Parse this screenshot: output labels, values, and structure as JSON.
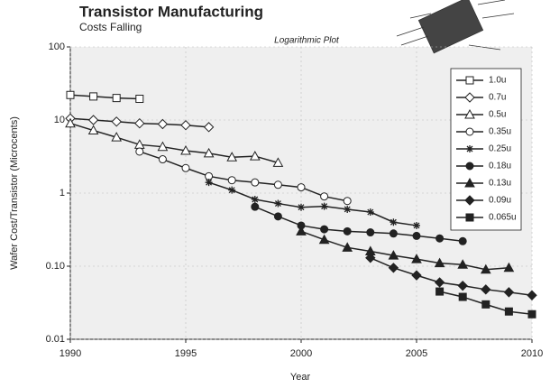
{
  "chart_data": {
    "type": "line",
    "title": "Transistor Manufacturing",
    "subtitle": "Costs Falling",
    "annotation": "Logarithmic Plot",
    "x_label": "Year",
    "y_label": "Wafer Cost/Transistor (Microcents)",
    "log_y": true,
    "grid": true,
    "legend": "upper right",
    "x": [
      1990,
      1991,
      1992,
      1993,
      1994,
      1995,
      1996,
      1997,
      1998,
      1999,
      2000,
      2001,
      2002,
      2003,
      2004,
      2005,
      2006,
      2007,
      2008,
      2009,
      2010
    ],
    "xlim": [
      1990,
      2010
    ],
    "xticks": [
      1990,
      1995,
      2000,
      2005,
      2010
    ],
    "ylim": [
      0.01,
      100
    ],
    "yticks": [
      0.01,
      {
        "value": 0.1,
        "label": "0.10"
      },
      1,
      10,
      100
    ],
    "series": [
      {
        "name": "1.0u",
        "color": "#222",
        "marker": "square-open",
        "values": [
          22,
          21,
          20,
          19.5,
          null,
          null,
          null,
          null,
          null,
          null,
          null,
          null,
          null,
          null,
          null,
          null,
          null,
          null,
          null,
          null,
          null
        ]
      },
      {
        "name": "0.7u",
        "color": "#222",
        "marker": "diamond-open",
        "values": [
          10.5,
          10,
          9.5,
          9,
          8.8,
          8.5,
          8,
          null,
          null,
          null,
          null,
          null,
          null,
          null,
          null,
          null,
          null,
          null,
          null,
          null,
          null
        ]
      },
      {
        "name": "0.5u",
        "color": "#222",
        "marker": "triangle-open",
        "values": [
          9,
          7.2,
          5.8,
          4.6,
          4.3,
          3.8,
          3.5,
          3.1,
          3.2,
          2.6,
          null,
          null,
          null,
          null,
          null,
          null,
          null,
          null,
          null,
          null,
          null
        ]
      },
      {
        "name": "0.35u",
        "color": "#222",
        "marker": "circle-open",
        "values": [
          null,
          null,
          null,
          3.7,
          2.9,
          2.2,
          1.7,
          1.5,
          1.4,
          1.3,
          1.2,
          0.9,
          0.78,
          null,
          null,
          null,
          null,
          null,
          null,
          null,
          null
        ]
      },
      {
        "name": "0.25u",
        "color": "#222",
        "marker": "asterisk",
        "values": [
          null,
          null,
          null,
          null,
          null,
          null,
          1.4,
          1.1,
          0.82,
          0.72,
          0.64,
          0.66,
          0.6,
          0.55,
          0.4,
          0.36,
          null,
          null,
          null,
          null,
          null
        ]
      },
      {
        "name": "0.18u",
        "color": "#222",
        "marker": "circle",
        "values": [
          null,
          null,
          null,
          null,
          null,
          null,
          null,
          null,
          0.65,
          0.48,
          0.36,
          0.32,
          0.3,
          0.29,
          0.28,
          0.26,
          0.24,
          0.22,
          null,
          null,
          null
        ]
      },
      {
        "name": "0.13u",
        "color": "#222",
        "marker": "triangle",
        "values": [
          null,
          null,
          null,
          null,
          null,
          null,
          null,
          null,
          null,
          null,
          0.3,
          0.23,
          0.18,
          0.16,
          0.14,
          0.125,
          0.11,
          0.105,
          0.09,
          0.095,
          null
        ]
      },
      {
        "name": "0.09u",
        "color": "#222",
        "marker": "diamond",
        "values": [
          null,
          null,
          null,
          null,
          null,
          null,
          null,
          null,
          null,
          null,
          null,
          null,
          null,
          0.13,
          0.095,
          0.075,
          0.06,
          0.054,
          0.048,
          0.044,
          0.04
        ]
      },
      {
        "name": "0.065u",
        "color": "#222",
        "marker": "square",
        "values": [
          null,
          null,
          null,
          null,
          null,
          null,
          null,
          null,
          null,
          null,
          null,
          null,
          null,
          null,
          null,
          null,
          0.045,
          0.038,
          0.03,
          0.024,
          0.022
        ]
      }
    ]
  }
}
